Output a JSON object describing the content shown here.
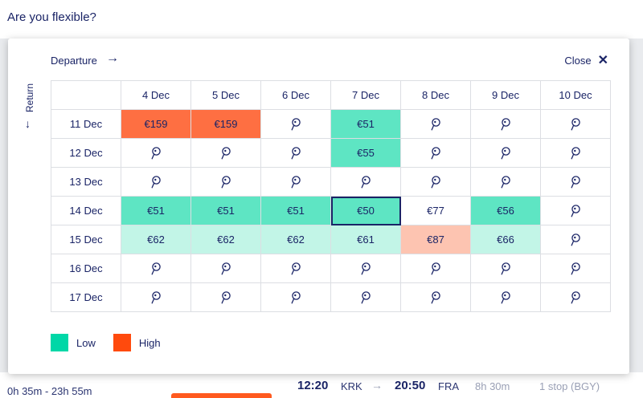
{
  "page": {
    "heading": "Are you flexible?"
  },
  "modal": {
    "departure_label": "Departure",
    "close_label": "Close",
    "return_label": "Return",
    "columns": [
      "4 Dec",
      "5 Dec",
      "6 Dec",
      "7 Dec",
      "8 Dec",
      "9 Dec",
      "10 Dec"
    ],
    "rows": [
      {
        "label": "11 Dec",
        "cells": [
          "€159",
          "€159",
          "",
          "€51",
          "",
          "",
          ""
        ]
      },
      {
        "label": "12 Dec",
        "cells": [
          "",
          "",
          "",
          "€55",
          "",
          "",
          ""
        ]
      },
      {
        "label": "13 Dec",
        "cells": [
          "",
          "",
          "",
          "",
          "",
          "",
          ""
        ]
      },
      {
        "label": "14 Dec",
        "cells": [
          "€51",
          "€51",
          "€51",
          "€50",
          "€77",
          "€56",
          ""
        ]
      },
      {
        "label": "15 Dec",
        "cells": [
          "€62",
          "€62",
          "€62",
          "€61",
          "€87",
          "€66",
          ""
        ]
      },
      {
        "label": "16 Dec",
        "cells": [
          "",
          "",
          "",
          "",
          "",
          "",
          ""
        ]
      },
      {
        "label": "17 Dec",
        "cells": [
          "",
          "",
          "",
          "",
          "",
          "",
          ""
        ]
      }
    ],
    "legend": {
      "low_label": "Low",
      "high_label": "High",
      "low_color": "#00d7a7",
      "high_color": "#ff4a0d"
    }
  },
  "background": {
    "duration_range": "0h 35m - 23h 55m",
    "depart_time": "12:20",
    "depart_code": "KRK",
    "arrive_time": "20:50",
    "arrive_code": "FRA",
    "duration": "8h 30m",
    "stops": "1 stop (BGY)"
  }
}
